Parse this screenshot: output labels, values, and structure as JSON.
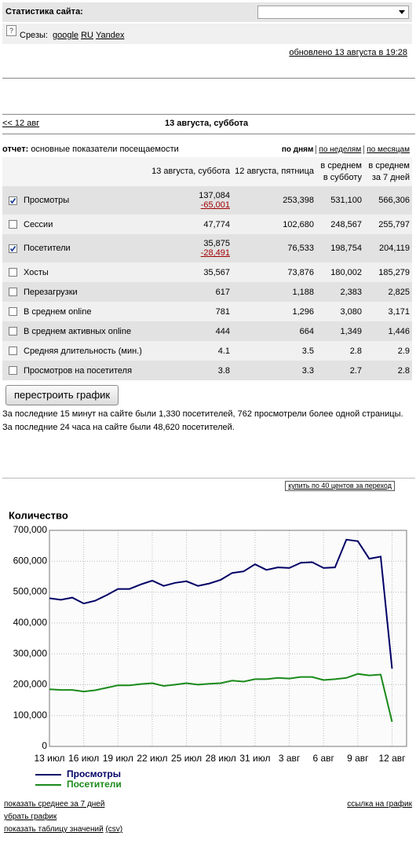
{
  "header": {
    "title": "Статистика сайта:",
    "help_icon": "?",
    "slices_label": "Срезы:",
    "slices": [
      "google",
      "RU",
      "Yandex"
    ],
    "updated": "обновлено 13 августа в 19:28"
  },
  "nav": {
    "prev": "<< 12 авг",
    "current": "13 августа, суббота"
  },
  "report": {
    "label": "отчет:",
    "name": "основные показатели посещаемости",
    "periods": [
      "по дням",
      "по неделям",
      "по месяцам"
    ]
  },
  "table": {
    "columns": [
      "13 августа, суббота",
      "12 августа, пятница",
      "в среднем в субботу",
      "в среднем за 7 дней"
    ],
    "rows": [
      {
        "label": "Просмотры",
        "checked": true,
        "values": [
          "137,084",
          "253,398",
          "531,100",
          "566,306"
        ],
        "diff": "-65,001"
      },
      {
        "label": "Сессии",
        "checked": false,
        "values": [
          "47,774",
          "102,680",
          "248,567",
          "255,797"
        ]
      },
      {
        "label": "Посетители",
        "checked": true,
        "values": [
          "35,875",
          "76,533",
          "198,754",
          "204,119"
        ],
        "diff": "-28,491"
      },
      {
        "label": "Хосты",
        "checked": false,
        "values": [
          "35,567",
          "73,876",
          "180,002",
          "185,279"
        ]
      },
      {
        "label": "Перезагрузки",
        "checked": false,
        "values": [
          "617",
          "1,188",
          "2,383",
          "2,825"
        ]
      },
      {
        "label": "В среднем online",
        "checked": false,
        "values": [
          "781",
          "1,296",
          "3,080",
          "3,171"
        ]
      },
      {
        "label": "В среднем активных online",
        "checked": false,
        "values": [
          "444",
          "664",
          "1,349",
          "1,446"
        ]
      },
      {
        "label": "Средняя длительность (мин.)",
        "checked": false,
        "values": [
          "4.1",
          "3.5",
          "2.8",
          "2.9"
        ]
      },
      {
        "label": "Просмотров на посетителя",
        "checked": false,
        "values": [
          "3.8",
          "3.3",
          "2.7",
          "2.8"
        ]
      }
    ]
  },
  "button": "перестроить график",
  "summary": [
    "За последние 15 минут на сайте были 1,330 посетителей, 762 просмотрели более одной страницы.",
    "За последние 24 часа на сайте были 48,620 посетителей."
  ],
  "promo": "купить по 40 центов за переход",
  "chart_data": {
    "type": "line",
    "title": "Количество",
    "categories": [
      "13 июл",
      null,
      null,
      "16 июл",
      null,
      null,
      "19 июл",
      null,
      null,
      "22 июл",
      null,
      null,
      "25 июл",
      null,
      null,
      "28 июл",
      null,
      null,
      "31 июл",
      null,
      null,
      "3 авг",
      null,
      null,
      "6 авг",
      null,
      null,
      "9 авг",
      null,
      null,
      "12 авг"
    ],
    "series": [
      {
        "name": "Просмотры",
        "color": "#000066",
        "values": [
          480000,
          475000,
          482000,
          463000,
          472000,
          490000,
          510000,
          510000,
          525000,
          537000,
          520000,
          530000,
          535000,
          520000,
          528000,
          540000,
          562000,
          567000,
          590000,
          572000,
          580000,
          578000,
          595000,
          597000,
          578000,
          580000,
          670000,
          665000,
          608000,
          615000,
          252000
        ]
      },
      {
        "name": "Посетители",
        "color": "#1a8a1a",
        "values": [
          185000,
          183000,
          183000,
          178000,
          182000,
          190000,
          198000,
          198000,
          202000,
          205000,
          196000,
          200000,
          205000,
          200000,
          203000,
          205000,
          213000,
          210000,
          218000,
          218000,
          222000,
          220000,
          225000,
          225000,
          215000,
          218000,
          222000,
          235000,
          230000,
          233000,
          80000
        ]
      }
    ],
    "ylim": [
      0,
      700000
    ],
    "yticks": [
      0,
      {
        "value": 100000,
        "label": "100,000"
      },
      {
        "value": 200000,
        "label": "200,000"
      },
      {
        "value": 300000,
        "label": "300,000"
      },
      {
        "value": 400000,
        "label": "400,000"
      },
      {
        "value": 500000,
        "label": "500,000"
      },
      {
        "value": 600000,
        "label": "600,000"
      },
      {
        "value": 700000,
        "label": "700,000"
      }
    ],
    "grid": true
  },
  "footer": {
    "avg_link": "показать среднее за 7 дней",
    "remove_link": "убрать график",
    "table_link": "показать таблицу значений",
    "csv_link": "(csv)",
    "chart_link": "ссылка на график"
  }
}
